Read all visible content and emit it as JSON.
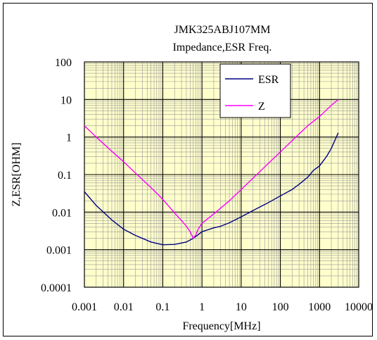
{
  "chart_data": {
    "type": "line",
    "title": "JMK325ABJ107MM",
    "subtitle": "Impedance,ESR  Freq.",
    "xlabel": "Frequency[MHz]",
    "ylabel": "Z,ESR[OHM]",
    "x_scale": "log",
    "y_scale": "log",
    "xlim": [
      0.001,
      10000
    ],
    "ylim": [
      0.0001,
      100
    ],
    "x_ticks": [
      "0.001",
      "0.01",
      "0.1",
      "1",
      "10",
      "100",
      "1000",
      "10000"
    ],
    "y_ticks": [
      "100",
      "10",
      "1",
      "0.1",
      "0.01",
      "0.001",
      "0.0001"
    ],
    "grid": true,
    "legend_position": "top-right",
    "colors": {
      "plot_bg": "#ffffcc",
      "grid_major": "#000000",
      "grid_minor": "#999999"
    },
    "series": [
      {
        "name": "ESR",
        "color": "#000080",
        "x": [
          0.001,
          0.002,
          0.005,
          0.01,
          0.02,
          0.05,
          0.1,
          0.2,
          0.4,
          0.6,
          0.8,
          1,
          2,
          3,
          5,
          10,
          20,
          50,
          100,
          200,
          300,
          500,
          700,
          1000,
          1500,
          2000,
          3000
        ],
        "y": [
          0.035,
          0.015,
          0.0062,
          0.0035,
          0.0024,
          0.0016,
          0.00135,
          0.00138,
          0.0016,
          0.002,
          0.0025,
          0.003,
          0.0038,
          0.0042,
          0.0052,
          0.0075,
          0.011,
          0.018,
          0.027,
          0.04,
          0.055,
          0.085,
          0.13,
          0.17,
          0.3,
          0.5,
          1.3
        ]
      },
      {
        "name": "Z",
        "color": "#ff00ff",
        "x": [
          0.001,
          0.002,
          0.005,
          0.01,
          0.02,
          0.05,
          0.1,
          0.2,
          0.3,
          0.4,
          0.5,
          0.6,
          0.7,
          0.8,
          1,
          2,
          5,
          10,
          20,
          50,
          100,
          200,
          500,
          1000,
          2000,
          3000
        ],
        "y": [
          2.0,
          1.0,
          0.42,
          0.22,
          0.11,
          0.045,
          0.022,
          0.0095,
          0.006,
          0.0042,
          0.003,
          0.002,
          0.0025,
          0.0035,
          0.005,
          0.009,
          0.02,
          0.04,
          0.08,
          0.2,
          0.4,
          0.8,
          2.0,
          3.5,
          7.0,
          10.0
        ]
      }
    ]
  }
}
